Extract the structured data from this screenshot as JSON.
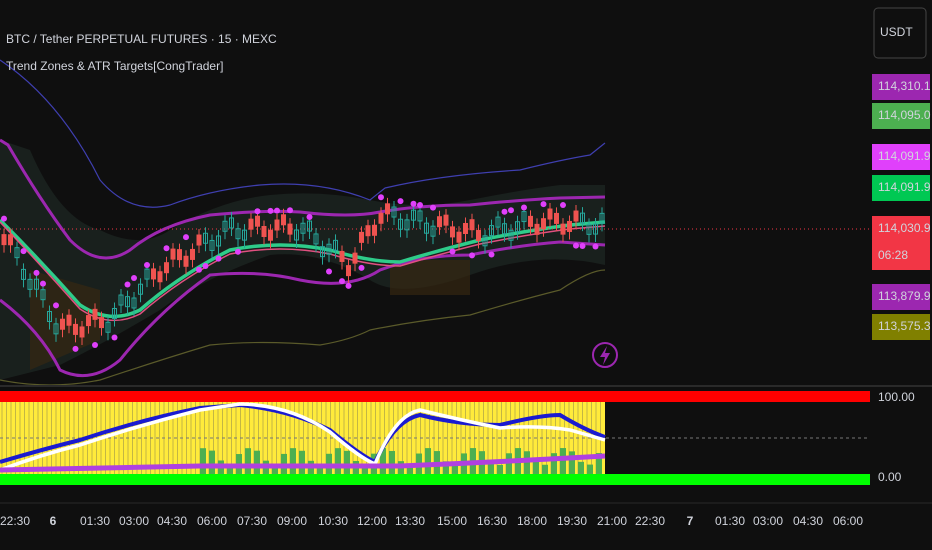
{
  "header": {
    "symbol": "BTC / Tether PERPETUAL FUTURES · 15 · MEXC",
    "indicator": "Trend Zones & ATR Targets[CongTrader]",
    "currency": "USDT"
  },
  "price_labels": [
    {
      "text": "114,310.1",
      "color": "#9c27b0"
    },
    {
      "text": "114,095.0",
      "color": "#4caf50"
    },
    {
      "text": "114,091.9",
      "color": "#e040fb"
    },
    {
      "text": "114,091.9",
      "color": "#00c853"
    },
    {
      "text": "114,030.9",
      "color": "#f23645",
      "countdown": "06:28"
    },
    {
      "text": "113,879.9",
      "color": "#9c27b0"
    },
    {
      "text": "113,575.3",
      "color": "#808000"
    }
  ],
  "oscillator": {
    "top": "100.00",
    "bottom": "0.00"
  },
  "time_axis": [
    {
      "text": "22:30"
    },
    {
      "text": "6",
      "bold": true
    },
    {
      "text": "01:30"
    },
    {
      "text": "03:00"
    },
    {
      "text": "04:30"
    },
    {
      "text": "06:00"
    },
    {
      "text": "07:30"
    },
    {
      "text": "09:00"
    },
    {
      "text": "10:30"
    },
    {
      "text": "12:00"
    },
    {
      "text": "13:30"
    },
    {
      "text": "15:00"
    },
    {
      "text": "16:30"
    },
    {
      "text": "18:00"
    },
    {
      "text": "19:30"
    },
    {
      "text": "21:00"
    },
    {
      "text": "22:30"
    },
    {
      "text": "7",
      "bold": true
    },
    {
      "text": "01:30"
    },
    {
      "text": "03:00"
    },
    {
      "text": "04:30"
    },
    {
      "text": "06:00"
    }
  ]
}
